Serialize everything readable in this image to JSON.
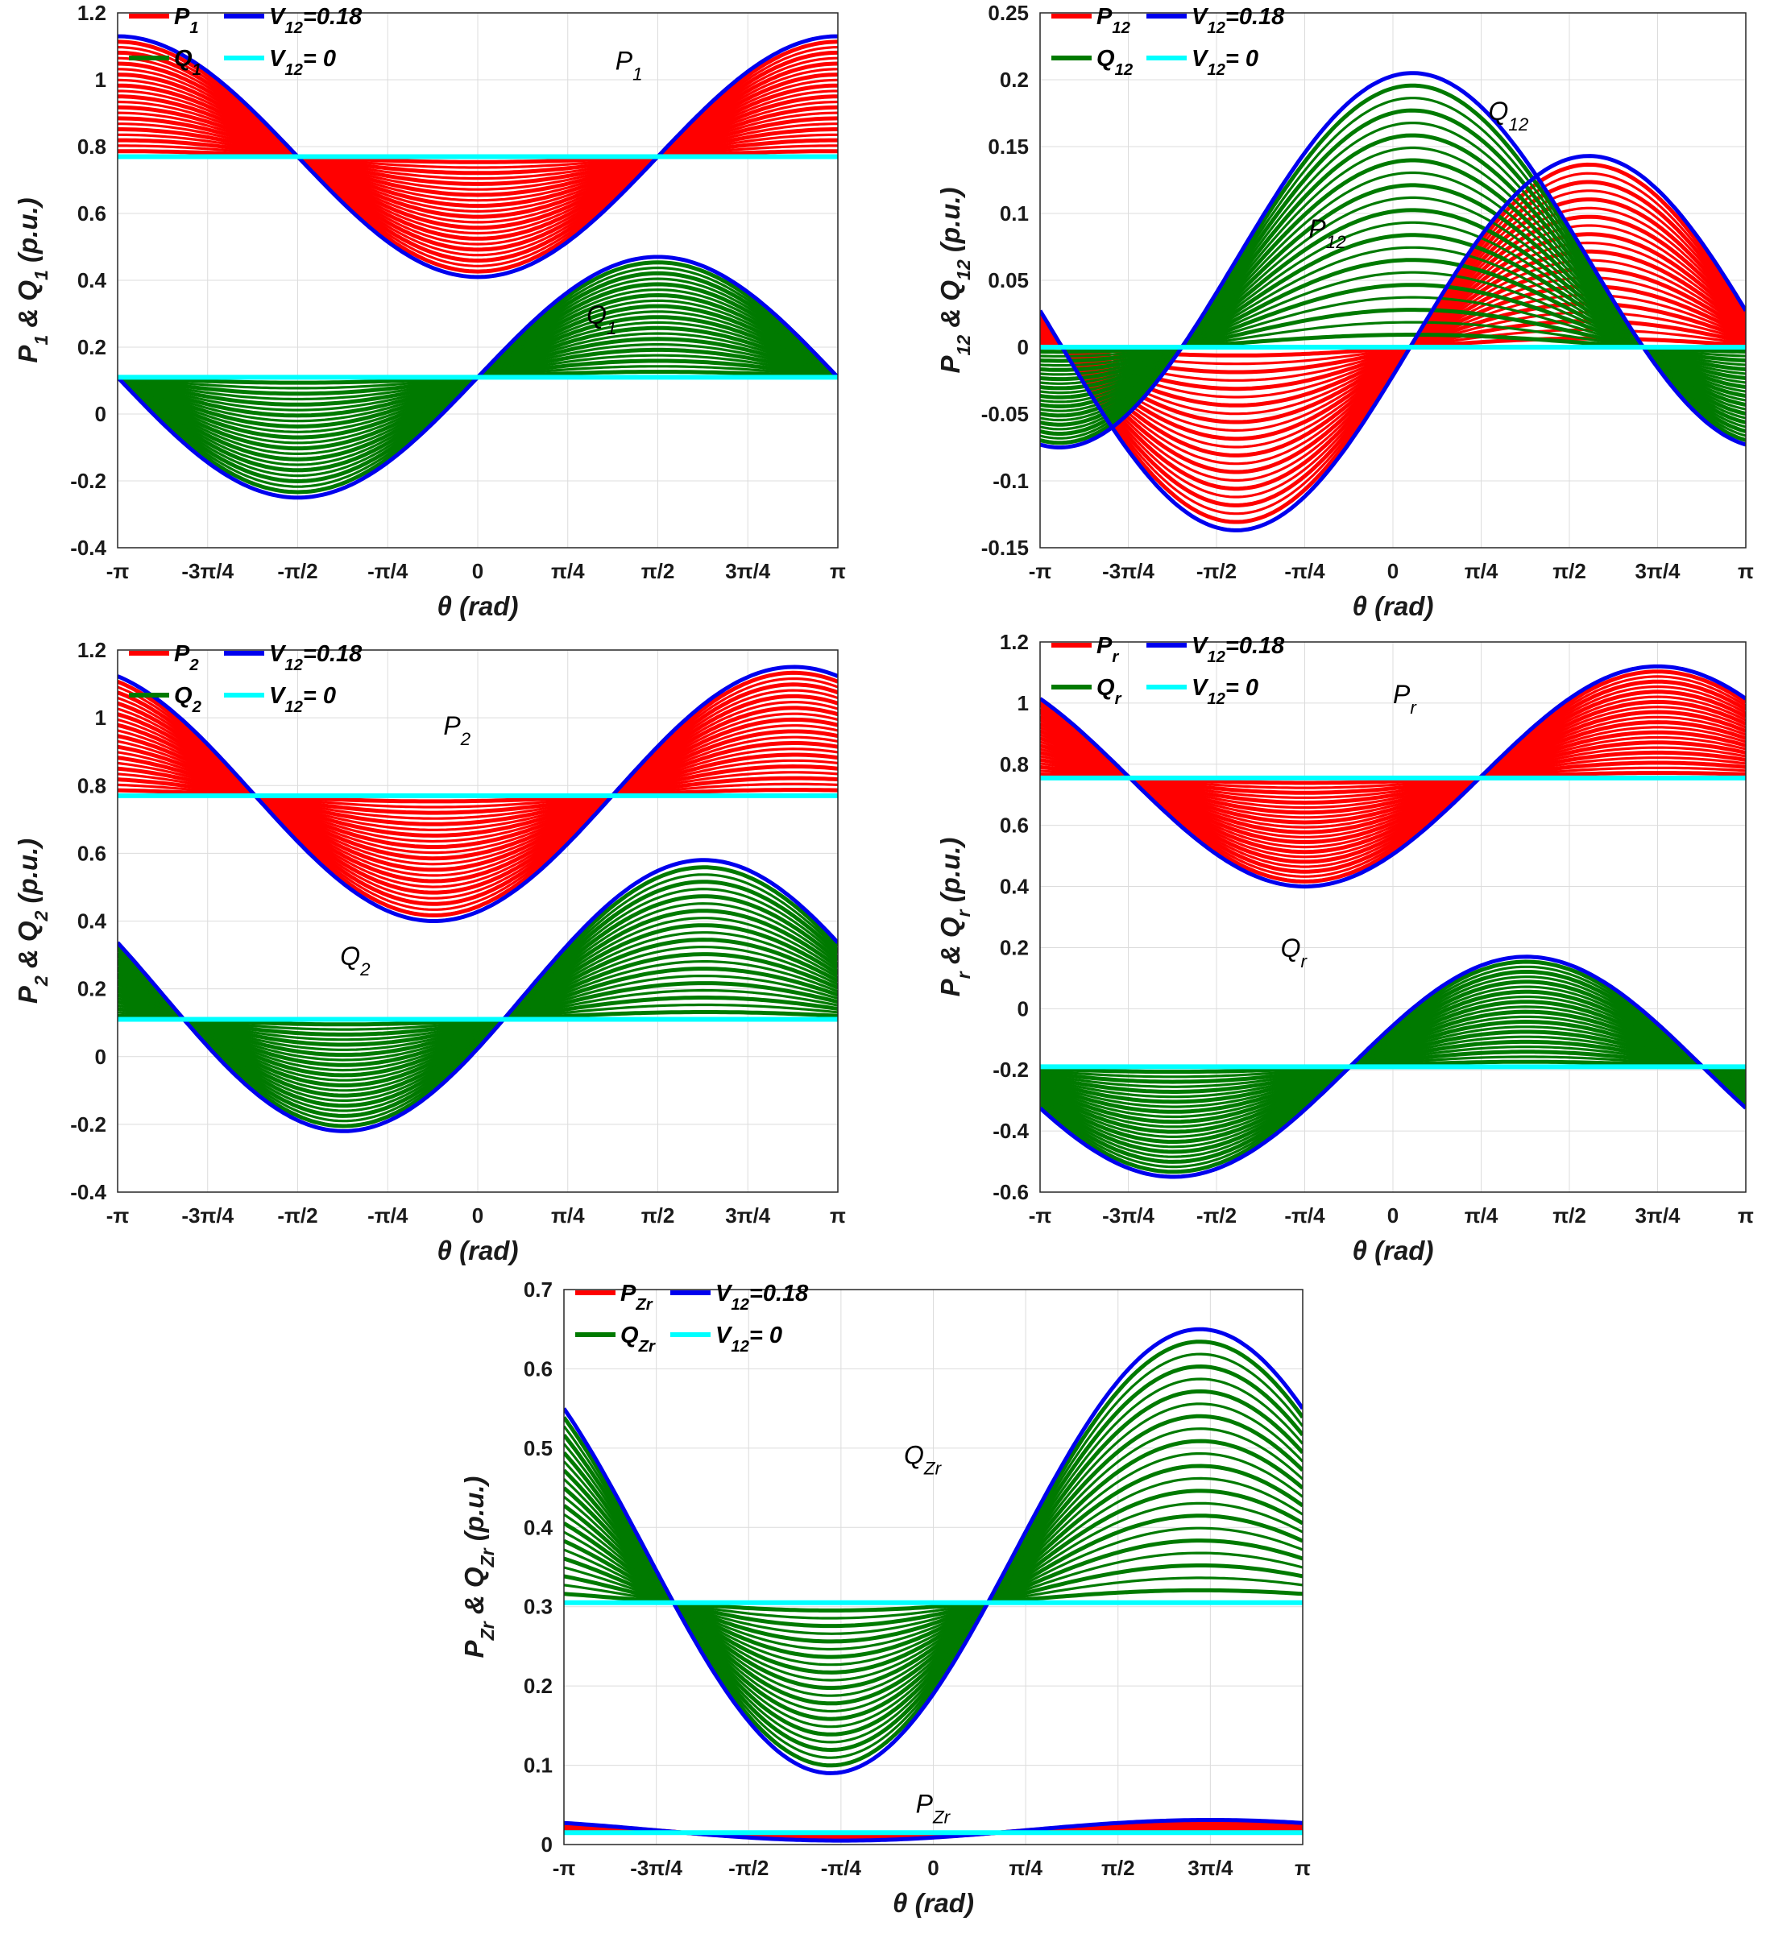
{
  "colors": {
    "P_band": "#ff0000",
    "Q_band": "#007a00",
    "V_max_curve": "#0000ee",
    "V_zero_curve": "#00ffff",
    "grid": "#dcdcdc",
    "axes": "#262626"
  },
  "chart_data": [
    {
      "id": "plot1",
      "type": "line",
      "xlabel": "θ (rad)",
      "ylabel": {
        "base": "P",
        "sub": "1",
        "mid": " & Q",
        "sub2": "1",
        "tail": " (p.u.)"
      },
      "xlim": [
        -3.14159,
        3.14159
      ],
      "ylim": [
        -0.4,
        1.2
      ],
      "x_ticks": [
        -3.14159,
        -2.35619,
        -1.5708,
        -0.7854,
        0,
        0.7854,
        1.5708,
        2.35619,
        3.14159
      ],
      "x_tick_labels": [
        "-π",
        "-3π/4",
        "-π/2",
        "-π/4",
        "0",
        "π/4",
        "π/2",
        "3π/4",
        "π"
      ],
      "y_ticks": [
        -0.4,
        -0.2,
        0,
        0.2,
        0.4,
        0.6,
        0.8,
        1,
        1.2
      ],
      "y_tick_labels": [
        "-0.4",
        "-0.2",
        "0",
        "0.2",
        "0.4",
        "0.6",
        "0.8",
        "1",
        "1.2"
      ],
      "legend": [
        {
          "base": "P",
          "sub": "1",
          "tail": "",
          "color": "P_band"
        },
        {
          "base": "V",
          "sub": "12",
          "tail": "=0.18",
          "color": "V_max_curve"
        },
        {
          "base": "Q",
          "sub": "1",
          "tail": "",
          "color": "Q_band"
        },
        {
          "base": "V",
          "sub": "12",
          "tail": "= 0",
          "color": "V_zero_curve"
        }
      ],
      "annotations": [
        {
          "base": "P",
          "sub": "1",
          "x": 1.2,
          "y": 1.03
        },
        {
          "base": "Q",
          "sub": "1",
          "x": 0.95,
          "y": 0.27
        }
      ],
      "series": [
        {
          "name": "P1",
          "band_color": "P_band",
          "V0_value": 0.77,
          "V_max_curve": {
            "offset": 0.77,
            "amp": 0.36,
            "phase_deg": 90
          }
        },
        {
          "name": "Q1",
          "band_color": "Q_band",
          "V0_value": 0.11,
          "V_max_curve": {
            "offset": 0.11,
            "amp": 0.36,
            "phase_deg": 0
          }
        }
      ]
    },
    {
      "id": "plot2",
      "type": "line",
      "xlabel": "θ (rad)",
      "ylabel": {
        "base": "P",
        "sub": "12",
        "mid": " & Q",
        "sub2": "12",
        "tail": " (p.u.)"
      },
      "xlim": [
        -3.14159,
        3.14159
      ],
      "ylim": [
        -0.15,
        0.25
      ],
      "x_ticks": [
        -3.14159,
        -2.35619,
        -1.5708,
        -0.7854,
        0,
        0.7854,
        1.5708,
        2.35619,
        3.14159
      ],
      "x_tick_labels": [
        "-π",
        "-3π/4",
        "-π/2",
        "-π/4",
        "0",
        "π/4",
        "π/2",
        "3π/4",
        "π"
      ],
      "y_ticks": [
        -0.15,
        -0.1,
        -0.05,
        0,
        0.05,
        0.1,
        0.15,
        0.2,
        0.25
      ],
      "y_tick_labels": [
        "-0.15",
        "-0.1",
        "-0.05",
        "0",
        "0.05",
        "0.1",
        "0.15",
        "0.2",
        "0.25"
      ],
      "legend": [
        {
          "base": "P",
          "sub": "12",
          "tail": "",
          "color": "P_band"
        },
        {
          "base": "V",
          "sub": "12",
          "tail": "=0.18",
          "color": "V_max_curve"
        },
        {
          "base": "Q",
          "sub": "12",
          "tail": "",
          "color": "Q_band"
        },
        {
          "base": "V",
          "sub": "12",
          "tail": "= 0",
          "color": "V_zero_curve"
        }
      ],
      "annotations": [
        {
          "base": "P",
          "sub": "12",
          "x": -0.75,
          "y": 0.082
        },
        {
          "base": "Q",
          "sub": "12",
          "x": 0.85,
          "y": 0.17
        }
      ],
      "series": [
        {
          "name": "P12",
          "band_color": "P_band",
          "V0_value": 0.0,
          "V_max_curve": {
            "offset": 0.003,
            "amp": 0.14,
            "phase_deg": 10
          }
        },
        {
          "name": "Q12",
          "band_color": "Q_band",
          "V0_value": 0.0,
          "V_max_curve": {
            "offset": 0.065,
            "amp": 0.14,
            "phase_deg": -80
          }
        }
      ]
    },
    {
      "id": "plot3",
      "type": "line",
      "xlabel": "θ (rad)",
      "ylabel": {
        "base": "P",
        "sub": "2",
        "mid": " & Q",
        "sub2": "2",
        "tail": " (p.u.)"
      },
      "xlim": [
        -3.14159,
        3.14159
      ],
      "ylim": [
        -0.4,
        1.2
      ],
      "x_ticks": [
        -3.14159,
        -2.35619,
        -1.5708,
        -0.7854,
        0,
        0.7854,
        1.5708,
        2.35619,
        3.14159
      ],
      "x_tick_labels": [
        "-π",
        "-3π/4",
        "-π/2",
        "-π/4",
        "0",
        "π/4",
        "π/2",
        "3π/4",
        "π"
      ],
      "y_ticks": [
        -0.4,
        -0.2,
        0,
        0.2,
        0.4,
        0.6,
        0.8,
        1,
        1.2
      ],
      "y_tick_labels": [
        "-0.4",
        "-0.2",
        "0",
        "0.2",
        "0.4",
        "0.6",
        "0.8",
        "1",
        "1.2"
      ],
      "legend": [
        {
          "base": "P",
          "sub": "2",
          "tail": "",
          "color": "P_band"
        },
        {
          "base": "V",
          "sub": "12",
          "tail": "=0.18",
          "color": "V_max_curve"
        },
        {
          "base": "Q",
          "sub": "2",
          "tail": "",
          "color": "Q_band"
        },
        {
          "base": "V",
          "sub": "12",
          "tail": "= 0",
          "color": "V_zero_curve"
        }
      ],
      "annotations": [
        {
          "base": "P",
          "sub": "2",
          "x": -0.3,
          "y": 0.95
        },
        {
          "base": "Q",
          "sub": "2",
          "x": -1.2,
          "y": 0.27
        }
      ],
      "series": [
        {
          "name": "P2",
          "band_color": "P_band",
          "V0_value": 0.77,
          "V_max_curve": {
            "offset": 0.775,
            "amp": 0.375,
            "phase_deg": 68
          }
        },
        {
          "name": "Q2",
          "band_color": "Q_band",
          "V0_value": 0.11,
          "V_max_curve": {
            "offset": 0.18,
            "amp": 0.4,
            "phase_deg": 23
          }
        }
      ]
    },
    {
      "id": "plot4",
      "type": "line",
      "xlabel": "θ (rad)",
      "ylabel": {
        "base": "P",
        "sub": "r",
        "mid": " & Q",
        "sub2": "r",
        "tail": " (p.u.)"
      },
      "xlim": [
        -3.14159,
        3.14159
      ],
      "ylim": [
        -0.6,
        1.2
      ],
      "x_ticks": [
        -3.14159,
        -2.35619,
        -1.5708,
        -0.7854,
        0,
        0.7854,
        1.5708,
        2.35619,
        3.14159
      ],
      "x_tick_labels": [
        "-π",
        "-3π/4",
        "-π/2",
        "-π/4",
        "0",
        "π/4",
        "π/2",
        "3π/4",
        "π"
      ],
      "y_ticks": [
        -0.6,
        -0.4,
        -0.2,
        0,
        0.2,
        0.4,
        0.6,
        0.8,
        1,
        1.2
      ],
      "y_tick_labels": [
        "-0.6",
        "-0.4",
        "-0.2",
        "0",
        "0.2",
        "0.4",
        "0.6",
        "0.8",
        "1",
        "1.2"
      ],
      "legend": [
        {
          "base": "P",
          "sub": "r",
          "tail": "",
          "color": "P_band"
        },
        {
          "base": "V",
          "sub": "12",
          "tail": "=0.18",
          "color": "V_max_curve"
        },
        {
          "base": "Q",
          "sub": "r",
          "tail": "",
          "color": "Q_band"
        },
        {
          "base": "V",
          "sub": "12",
          "tail": "= 0",
          "color": "V_zero_curve"
        }
      ],
      "annotations": [
        {
          "base": "P",
          "sub": "r",
          "x": 0.0,
          "y": 1.0
        },
        {
          "base": "Q",
          "sub": "r",
          "x": -1.0,
          "y": 0.17
        }
      ],
      "series": [
        {
          "name": "Pr",
          "band_color": "P_band",
          "V0_value": 0.755,
          "V_max_curve": {
            "offset": 0.76,
            "amp": 0.36,
            "phase_deg": 45
          }
        },
        {
          "name": "Qr",
          "band_color": "Q_band",
          "V0_value": -0.19,
          "V_max_curve": {
            "offset": -0.19,
            "amp": 0.36,
            "phase_deg": -22
          }
        }
      ]
    },
    {
      "id": "plot5",
      "type": "line",
      "xlabel": "θ (rad)",
      "ylabel": {
        "base": "P",
        "sub": "Zr",
        "mid": " & Q",
        "sub2": "Zr",
        "tail": " (p.u.)"
      },
      "xlim": [
        -3.14159,
        3.14159
      ],
      "ylim": [
        0,
        0.7
      ],
      "x_ticks": [
        -3.14159,
        -2.35619,
        -1.5708,
        -0.7854,
        0,
        0.7854,
        1.5708,
        2.35619,
        3.14159
      ],
      "x_tick_labels": [
        "-π",
        "-3π/4",
        "-π/2",
        "-π/4",
        "0",
        "π/4",
        "π/2",
        "3π/4",
        "π"
      ],
      "y_ticks": [
        0,
        0.1,
        0.2,
        0.3,
        0.4,
        0.5,
        0.6,
        0.7
      ],
      "y_tick_labels": [
        "0",
        "0.1",
        "0.2",
        "0.3",
        "0.4",
        "0.5",
        "0.6",
        "0.7"
      ],
      "legend": [
        {
          "base": "P",
          "sub": "Zr",
          "tail": "",
          "color": "P_band"
        },
        {
          "base": "V",
          "sub": "12",
          "tail": "=0.18",
          "color": "V_max_curve"
        },
        {
          "base": "Q",
          "sub": "Zr",
          "tail": "",
          "color": "Q_band"
        },
        {
          "base": "V",
          "sub": "12",
          "tail": "= 0",
          "color": "V_zero_curve"
        }
      ],
      "annotations": [
        {
          "base": "P",
          "sub": "Zr",
          "x": -0.15,
          "y": 0.04
        },
        {
          "base": "Q",
          "sub": "Zr",
          "x": -0.25,
          "y": 0.48
        }
      ],
      "series": [
        {
          "name": "PZr",
          "band_color": "P_band",
          "V0_value": 0.015,
          "V_max_curve": {
            "offset": 0.018,
            "amp": 0.013,
            "phase_deg": 45
          }
        },
        {
          "name": "QZr",
          "band_color": "Q_band",
          "V0_value": 0.305,
          "V_max_curve": {
            "offset": 0.37,
            "amp": 0.28,
            "phase_deg": 40
          }
        }
      ]
    }
  ]
}
